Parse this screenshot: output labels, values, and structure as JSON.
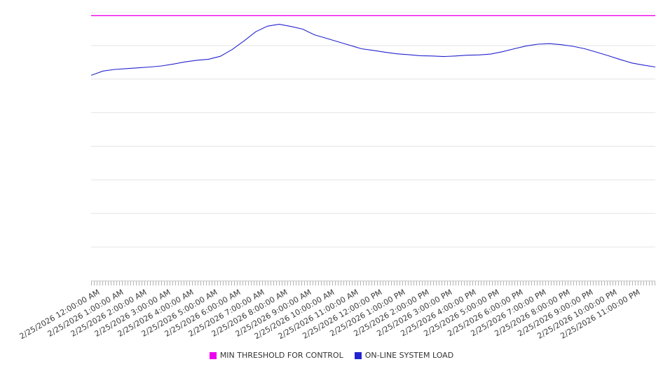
{
  "chart_data": {
    "type": "line",
    "title": "",
    "xlabel": "",
    "ylabel": "",
    "ylim": [
      0,
      100
    ],
    "grid": "horizontal",
    "grid_step": 12.5,
    "legend_position": "bottom",
    "x_tick_labels": [
      "2/25/2026 12:00:00 AM",
      "2/25/2026 1:00:00 AM",
      "2/25/2026 2:00:00 AM",
      "2/25/2026 3:00:00 AM",
      "2/25/2026 4:00:00 AM",
      "2/25/2026 5:00:00 AM",
      "2/25/2026 6:00:00 AM",
      "2/25/2026 7:00:00 AM",
      "2/25/2026 8:00:00 AM",
      "2/25/2026 9:00:00 AM",
      "2/25/2026 10:00:00 AM",
      "2/25/2026 11:00:00 AM",
      "2/25/2026 12:00:00 PM",
      "2/25/2026 1:00:00 PM",
      "2/25/2026 2:00:00 PM",
      "2/25/2026 3:00:00 PM",
      "2/25/2026 4:00:00 PM",
      "2/25/2026 5:00:00 PM",
      "2/25/2026 6:00:00 PM",
      "2/25/2026 7:00:00 PM",
      "2/25/2026 8:00:00 PM",
      "2/25/2026 9:00:00 PM",
      "2/25/2026 10:00:00 PM",
      "2/25/2026 11:00:00 PM"
    ],
    "x_start_hour": 0,
    "x_step_hours": 0.5,
    "x_range_hours": [
      0,
      24
    ],
    "series": [
      {
        "name": "MIN THRESHOLD FOR CONTROL",
        "color": "#ee00ee",
        "style": "threshold",
        "value": 98.6
      },
      {
        "name": "ON-LINE SYSTEM LOAD",
        "color": "#2323cf",
        "style": "line",
        "values": [
          76.4,
          78.0,
          78.6,
          78.9,
          79.2,
          79.5,
          79.9,
          80.6,
          81.4,
          82.0,
          82.4,
          83.5,
          86.0,
          89.2,
          92.6,
          94.7,
          95.4,
          94.6,
          93.6,
          91.5,
          90.2,
          88.9,
          87.6,
          86.3,
          85.7,
          85.0,
          84.4,
          84.1,
          83.7,
          83.6,
          83.4,
          83.6,
          83.9,
          84.0,
          84.3,
          85.2,
          86.3,
          87.3,
          88.0,
          88.2,
          87.8,
          87.2,
          86.3,
          85.0,
          83.7,
          82.3,
          81.0,
          80.2,
          79.5
        ]
      }
    ]
  },
  "colors": {
    "grid": "#e4e4e4",
    "axis": "#c8c8c8",
    "tick": "#b4b4b4",
    "label": "#3c3c3c"
  }
}
